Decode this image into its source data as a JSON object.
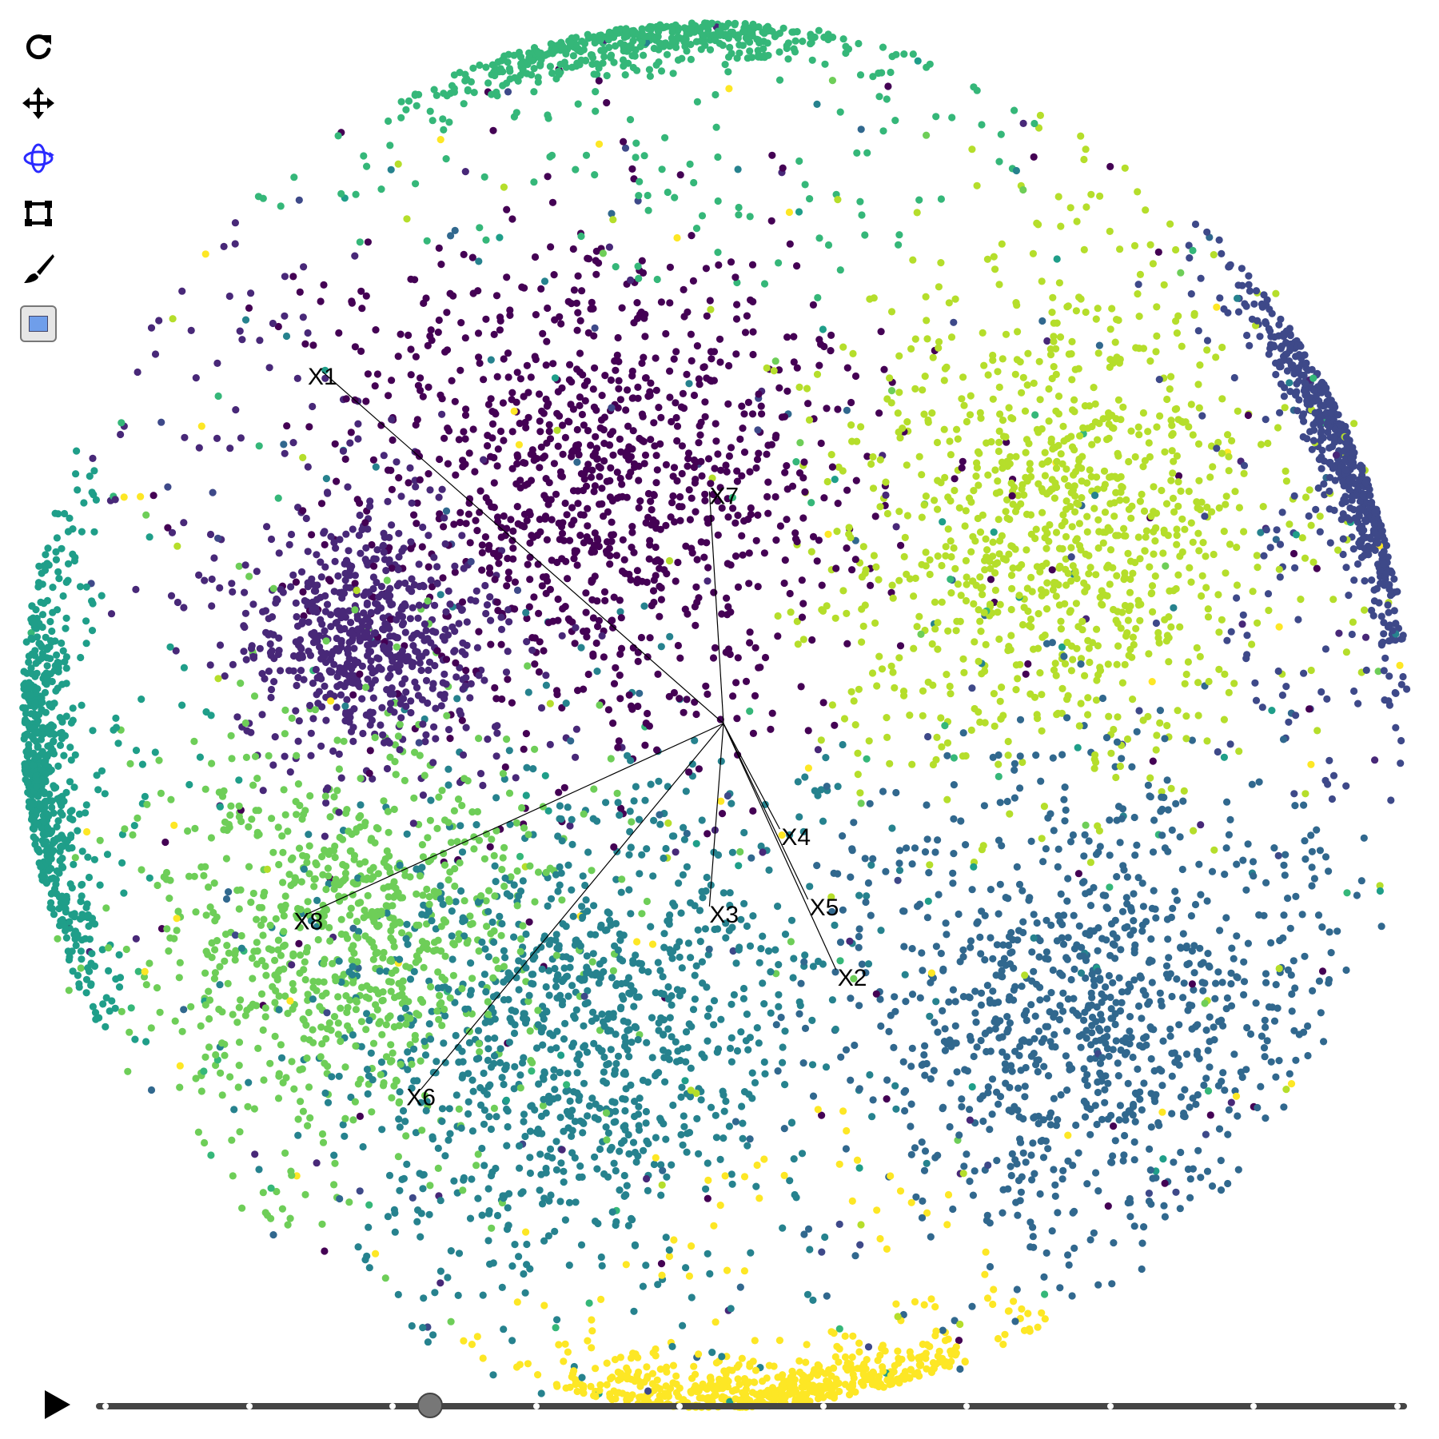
{
  "toolbar": {
    "tools": [
      {
        "name": "reset",
        "icon": "refresh-icon",
        "color": "#000000"
      },
      {
        "name": "pan",
        "icon": "move-arrows-icon",
        "color": "#000000"
      },
      {
        "name": "rotate",
        "icon": "orbit-rotate-icon",
        "color": "#2a2aff",
        "active": true
      },
      {
        "name": "select",
        "icon": "box-select-icon",
        "color": "#000000"
      },
      {
        "name": "brush",
        "icon": "paintbrush-icon",
        "color": "#000000"
      },
      {
        "name": "color",
        "icon": "color-swatch-icon",
        "color": "#6f9eea"
      }
    ]
  },
  "player": {
    "play_icon": "play-icon",
    "slider": {
      "ticks": 10,
      "position": 0.25
    }
  },
  "chart_data": {
    "type": "scatter",
    "projection": "tour",
    "axes": [
      {
        "label": "X1",
        "dx": -0.57,
        "dy": 0.5
      },
      {
        "label": "X2",
        "dx": 0.16,
        "dy": -0.35
      },
      {
        "label": "X3",
        "dx": -0.02,
        "dy": -0.26
      },
      {
        "label": "X4",
        "dx": 0.08,
        "dy": -0.15
      },
      {
        "label": "X5",
        "dx": 0.12,
        "dy": -0.25
      },
      {
        "label": "X6",
        "dx": -0.43,
        "dy": -0.52
      },
      {
        "label": "X7",
        "dx": -0.02,
        "dy": 0.33
      },
      {
        "label": "X8",
        "dx": -0.59,
        "dy": -0.27
      }
    ],
    "xlim": [
      -1,
      1
    ],
    "ylim": [
      -1,
      1
    ],
    "grid": false,
    "legend": "none",
    "clusters": [
      {
        "color": "#440154",
        "center": [
          -0.18,
          0.32
        ],
        "spread": 0.18,
        "count": 950
      },
      {
        "color": "#482878",
        "center": [
          -0.5,
          0.11
        ],
        "spread": 0.09,
        "count": 600
      },
      {
        "color": "#3e4989",
        "center": [
          0.87,
          0.3
        ],
        "spread": 0.025,
        "count": 520,
        "arc": true,
        "arc_from": 0.15,
        "arc_to": 0.62
      },
      {
        "color": "#31688e",
        "center": [
          0.53,
          -0.42
        ],
        "spread": 0.16,
        "count": 900
      },
      {
        "color": "#26828e",
        "center": [
          -0.2,
          -0.45
        ],
        "spread": 0.17,
        "count": 1000
      },
      {
        "color": "#1f9e89",
        "center": [
          -0.92,
          -0.1
        ],
        "spread": 0.03,
        "count": 560,
        "arc": true,
        "arc_from": 2.95,
        "arc_to": 3.5
      },
      {
        "color": "#35b779",
        "center": [
          -0.1,
          0.93
        ],
        "spread": 0.025,
        "count": 450,
        "arc": true,
        "arc_from": 1.42,
        "arc_to": 1.95
      },
      {
        "color": "#6ece58",
        "center": [
          -0.52,
          -0.3
        ],
        "spread": 0.14,
        "count": 800
      },
      {
        "color": "#b5de2b",
        "center": [
          0.5,
          0.27
        ],
        "spread": 0.17,
        "count": 900
      },
      {
        "color": "#fde725",
        "center": [
          0.1,
          -0.9
        ],
        "spread": 0.03,
        "count": 520,
        "arc": true,
        "arc_from": 4.55,
        "arc_to": 5.05
      }
    ],
    "background_points": 1500
  }
}
